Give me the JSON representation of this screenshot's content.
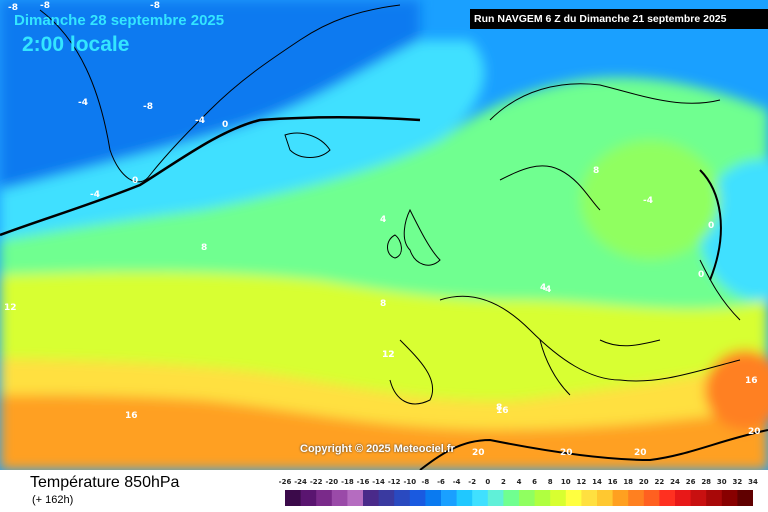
{
  "title": "Dimanche 28 septembre 2025",
  "subtitle": "2:00 locale",
  "run_info": "Run NAVGEM 6 Z du Dimanche 21 septembre 2025",
  "copyright": "Copyright © 2025 Meteociel.fr",
  "footer": {
    "title": "Température 850hPa",
    "hours": "(+ 162h)"
  },
  "legend": {
    "ticks": [
      "-26",
      "-24",
      "-22",
      "-20",
      "-18",
      "-16",
      "-14",
      "-12",
      "-10",
      "-8",
      "-6",
      "-4",
      "-2",
      "0",
      "2",
      "4",
      "6",
      "8",
      "10",
      "12",
      "14",
      "16",
      "18",
      "20",
      "22",
      "24",
      "26",
      "28",
      "30",
      "32",
      "34"
    ],
    "colors": [
      "#3b0a4a",
      "#5a1570",
      "#7a2a8a",
      "#9a4aa8",
      "#b56cc0",
      "#4a2a8a",
      "#3a3aa0",
      "#2a4ac0",
      "#1a5ae0",
      "#0a7af0",
      "#1aa0ff",
      "#20c8ff",
      "#40e0ff",
      "#60f0d8",
      "#70ff90",
      "#90ff60",
      "#b0ff40",
      "#d8ff30",
      "#ffff40",
      "#ffe040",
      "#ffc830",
      "#ffa020",
      "#ff8020",
      "#ff6020",
      "#ff3020",
      "#e81818",
      "#c81010",
      "#a80808",
      "#880000",
      "#600000"
    ]
  },
  "isotherm_labels": [
    "-8",
    "-8",
    "-8",
    "-4",
    "-8",
    "-4",
    "0",
    "0",
    "-4",
    "4",
    "8",
    "8",
    "8",
    "4",
    "8",
    "-4",
    "0",
    "0",
    "12",
    "12",
    "16",
    "16",
    "16",
    "20",
    "20",
    "20",
    "20",
    "4",
    "12"
  ]
}
